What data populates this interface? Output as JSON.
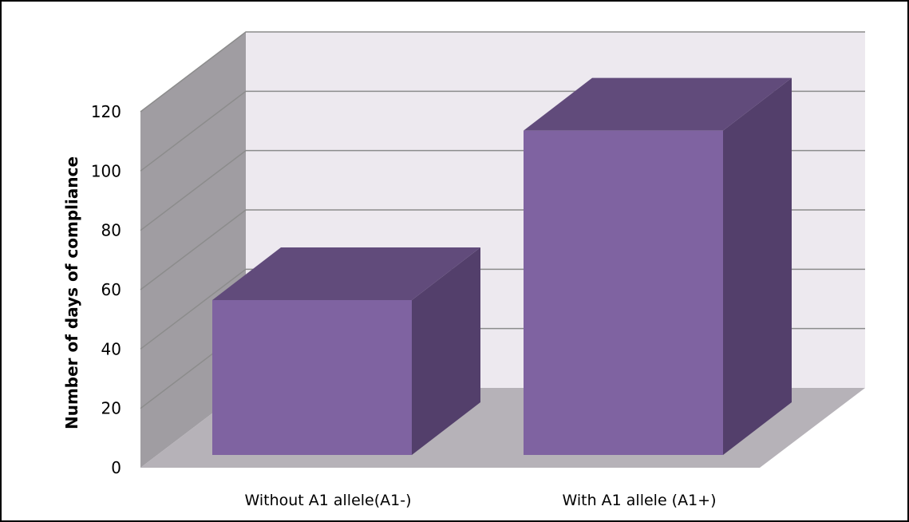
{
  "chart_data": {
    "type": "bar",
    "style": "3d-column",
    "title": "",
    "xlabel": "",
    "ylabel": "Number of days of compliance",
    "categories": [
      "Without A1 allele(A1-)",
      "With A1 allele (A1+)"
    ],
    "values": [
      53,
      111
    ],
    "ylim": [
      0,
      120
    ],
    "yticks": [
      0,
      20,
      40,
      60,
      80,
      100,
      120
    ],
    "grid": true,
    "legend": "none",
    "colors": {
      "bar_front": "#7f63a1",
      "bar_top": "#614b7b",
      "bar_side": "#533f6b",
      "back_wall": "#ede9ef",
      "side_wall": "#a09da2",
      "floor": "#b6b2b8",
      "grid": "#8c8c8c"
    }
  }
}
